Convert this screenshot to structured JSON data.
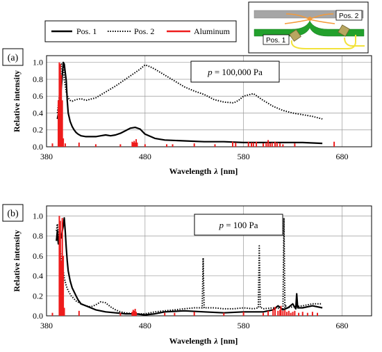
{
  "legend": {
    "items": [
      {
        "label": "Pos. 1",
        "style": "solid",
        "color": "#000000"
      },
      {
        "label": "Pos. 2",
        "style": "dotted",
        "color": "#000000"
      },
      {
        "label": "Aluminum",
        "style": "solid",
        "color": "#ee1c1c"
      }
    ]
  },
  "inset": {
    "pos1_label": "Pos. 1",
    "pos2_label": "Pos. 2",
    "colors": {
      "plate": "#a6a6a6",
      "green": "#22a02c",
      "orange": "#f39a3a",
      "yellow": "#f2e23a",
      "sensor": "#b8a660"
    }
  },
  "chart_data": [
    {
      "type": "line",
      "panel_label": "(a)",
      "annotation": {
        "prefix": "p",
        "text": " = 100,000 Pa"
      },
      "xlabel": "Wavelength",
      "xlabel_symbol": "λ",
      "xlabel_unit": "[nm]",
      "ylabel": "Relative intensity",
      "xlim": [
        380,
        710
      ],
      "ylim": [
        0,
        1.08
      ],
      "xticks": [
        380,
        480,
        580,
        680
      ],
      "xtick_labels": [
        "380",
        "480",
        "580",
        "680"
      ],
      "yticks": [
        0.0,
        0.2,
        0.4,
        0.6,
        0.8,
        1.0
      ],
      "ytick_labels": [
        "0.0",
        "0.2",
        "0.4",
        "0.6",
        "0.8",
        "1.0"
      ],
      "grid": true,
      "series": [
        {
          "name": "Pos. 1",
          "style": "solid",
          "color": "#000000",
          "x": [
            391,
            393,
            395,
            397,
            398,
            400,
            401,
            402,
            404,
            406,
            408,
            410,
            412,
            415,
            420,
            425,
            430,
            435,
            440,
            445,
            450,
            455,
            460,
            465,
            470,
            475,
            480,
            490,
            500,
            520,
            540,
            560,
            580,
            600,
            620,
            640,
            660
          ],
          "y": [
            0.33,
            0.45,
            0.7,
            1.0,
            0.98,
            0.78,
            0.55,
            0.4,
            0.3,
            0.24,
            0.2,
            0.17,
            0.15,
            0.13,
            0.12,
            0.12,
            0.12,
            0.13,
            0.14,
            0.13,
            0.14,
            0.16,
            0.19,
            0.22,
            0.23,
            0.21,
            0.15,
            0.1,
            0.08,
            0.07,
            0.06,
            0.06,
            0.05,
            0.05,
            0.05,
            0.05,
            0.04
          ]
        },
        {
          "name": "Pos. 2",
          "style": "dotted",
          "color": "#000000",
          "x": [
            391,
            393,
            395,
            397,
            398,
            400,
            402,
            404,
            406,
            408,
            410,
            415,
            420,
            430,
            440,
            450,
            460,
            470,
            475,
            480,
            485,
            490,
            500,
            510,
            520,
            530,
            540,
            550,
            560,
            570,
            575,
            580,
            590,
            600,
            610,
            620,
            630,
            640,
            650,
            660
          ],
          "y": [
            0.4,
            0.6,
            0.98,
            0.97,
            0.8,
            0.65,
            0.58,
            0.55,
            0.54,
            0.55,
            0.56,
            0.57,
            0.55,
            0.58,
            0.65,
            0.72,
            0.8,
            0.88,
            0.92,
            0.97,
            0.95,
            0.92,
            0.85,
            0.78,
            0.71,
            0.66,
            0.62,
            0.56,
            0.53,
            0.52,
            0.55,
            0.6,
            0.63,
            0.55,
            0.48,
            0.43,
            0.4,
            0.38,
            0.36,
            0.33
          ]
        },
        {
          "name": "Aluminum",
          "style": "spikes",
          "color": "#ee1c1c",
          "x": [
            386,
            392,
            393,
            394,
            395,
            396,
            397,
            399,
            413,
            430,
            455,
            467,
            468,
            469,
            470,
            471,
            472,
            480,
            502,
            508,
            530,
            551,
            569,
            572,
            585,
            588,
            590,
            593,
            600,
            603,
            605,
            607,
            609,
            612,
            614,
            617,
            620,
            632,
            672
          ],
          "y": [
            0.04,
            0.55,
            1.0,
            0.98,
            0.85,
            0.55,
            0.1,
            0.04,
            0.05,
            0.03,
            0.03,
            0.06,
            0.05,
            0.07,
            0.05,
            0.09,
            0.05,
            0.03,
            0.03,
            0.03,
            0.04,
            0.03,
            0.06,
            0.05,
            0.06,
            0.05,
            0.05,
            0.06,
            0.04,
            0.05,
            0.08,
            0.04,
            0.05,
            0.06,
            0.05,
            0.04,
            0.03,
            0.04,
            0.06
          ]
        }
      ]
    },
    {
      "type": "line",
      "panel_label": "(b)",
      "annotation": {
        "prefix": "p",
        "text": " = 100 Pa"
      },
      "xlabel": "Wavelength",
      "xlabel_symbol": "λ",
      "xlabel_unit": "[nm]",
      "ylabel": "Relative intensity",
      "xlim": [
        380,
        710
      ],
      "ylim": [
        0,
        1.1
      ],
      "xticks": [
        380,
        480,
        580,
        680
      ],
      "xtick_labels": [
        "380",
        "480",
        "580",
        "680"
      ],
      "yticks": [
        0.0,
        0.2,
        0.4,
        0.6,
        0.8,
        1.0
      ],
      "ytick_labels": [
        "0.0",
        "0.2",
        "0.4",
        "0.6",
        "0.8",
        "1.0"
      ],
      "grid": true,
      "series": [
        {
          "name": "Pos. 1",
          "style": "solid",
          "color": "#000000",
          "x": [
            390,
            391,
            392,
            393,
            394,
            395,
            396,
            397,
            398,
            399,
            400,
            401,
            402,
            404,
            406,
            408,
            410,
            412,
            415,
            420,
            425,
            430,
            440,
            450,
            460,
            470,
            480,
            490,
            500,
            520,
            540,
            560,
            580,
            600,
            610,
            615,
            620,
            625,
            630,
            633,
            634,
            635,
            640,
            650,
            660
          ],
          "y": [
            0.75,
            0.85,
            0.72,
            0.8,
            0.82,
            0.78,
            0.85,
            0.9,
            0.98,
            0.85,
            0.68,
            0.55,
            0.45,
            0.35,
            0.28,
            0.24,
            0.2,
            0.16,
            0.12,
            0.1,
            0.08,
            0.06,
            0.04,
            0.03,
            0.02,
            0.02,
            0.01,
            0.02,
            0.04,
            0.05,
            0.04,
            0.03,
            0.04,
            0.04,
            0.06,
            0.1,
            0.06,
            0.08,
            0.12,
            0.07,
            0.22,
            0.08,
            0.08,
            0.1,
            0.08
          ]
        },
        {
          "name": "Pos. 2",
          "style": "dotted",
          "color": "#000000",
          "x": [
            390,
            391,
            392,
            393,
            394,
            395,
            396,
            397,
            398,
            400,
            402,
            405,
            410,
            415,
            420,
            425,
            430,
            435,
            440,
            445,
            450,
            455,
            460,
            470,
            480,
            490,
            500,
            510,
            520,
            530,
            538,
            539,
            540,
            541,
            542,
            550,
            560,
            570,
            580,
            590,
            595,
            596,
            597,
            598,
            600,
            610,
            620,
            621,
            622,
            623,
            624,
            630,
            640,
            650,
            660
          ],
          "y": [
            0.85,
            0.92,
            0.8,
            0.75,
            0.65,
            0.55,
            0.5,
            0.45,
            0.38,
            0.3,
            0.25,
            0.2,
            0.15,
            0.12,
            0.1,
            0.09,
            0.11,
            0.14,
            0.13,
            0.09,
            0.06,
            0.04,
            0.03,
            0.02,
            0.02,
            0.04,
            0.05,
            0.06,
            0.07,
            0.08,
            0.08,
            0.58,
            0.08,
            0.08,
            0.08,
            0.08,
            0.07,
            0.07,
            0.08,
            0.07,
            0.08,
            0.7,
            0.08,
            0.08,
            0.07,
            0.08,
            0.07,
            0.98,
            0.08,
            0.1,
            0.08,
            0.09,
            0.1,
            0.12,
            0.12
          ]
        },
        {
          "name": "Aluminum",
          "style": "spikes",
          "color": "#ee1c1c",
          "x": [
            386,
            393,
            394,
            395,
            396,
            397,
            398,
            413,
            455,
            467,
            468,
            469,
            470,
            471,
            500,
            510,
            530,
            560,
            580,
            600,
            605,
            610,
            612,
            615,
            617,
            618,
            620,
            622,
            624,
            626,
            628,
            630,
            632,
            636,
            640,
            645,
            650,
            655
          ],
          "y": [
            0.03,
            1.0,
            0.95,
            0.55,
            0.98,
            0.6,
            0.08,
            0.05,
            0.03,
            0.04,
            0.06,
            0.05,
            0.07,
            0.04,
            0.03,
            0.03,
            0.04,
            0.03,
            0.04,
            0.03,
            0.05,
            0.07,
            0.09,
            0.05,
            0.06,
            0.1,
            0.05,
            0.06,
            0.04,
            0.05,
            0.03,
            0.04,
            0.05,
            0.03,
            0.04,
            0.03,
            0.04,
            0.03
          ]
        }
      ]
    }
  ]
}
